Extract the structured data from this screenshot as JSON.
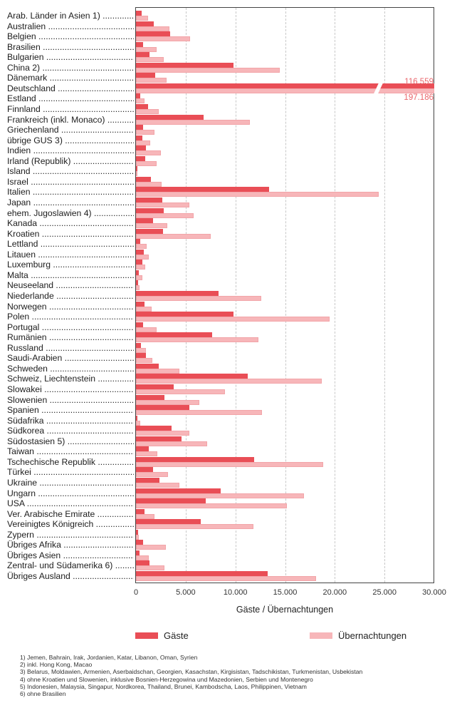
{
  "chart_data": {
    "type": "bar",
    "orientation": "horizontal",
    "xlabel": "Gäste / Übernachtungen",
    "ylabel": "",
    "xlim": [
      0,
      30000
    ],
    "x_ticks": [
      "0",
      "5.000",
      "10.000",
      "15.000",
      "20.000",
      "25.000",
      "30.000"
    ],
    "grid": true,
    "legend_position": "bottom",
    "colors": {
      "gaeste": "#e94e56",
      "uebernachtungen": "#f7b6b9",
      "break_label": "#e9656b"
    },
    "categories": [
      "Arab. Länder in Asien 1)",
      "Australien",
      "Belgien",
      "Brasilien",
      "Bulgarien",
      "China 2)",
      "Dänemark",
      "Deutschland",
      "Estland",
      "Finnland",
      "Frankreich (inkl. Monaco)",
      "Griechenland",
      "übrige GUS 3)",
      "Indien",
      "Irland (Republik)",
      "Island",
      "Israel",
      "Italien",
      "Japan",
      "ehem. Jugoslawien 4)",
      "Kanada",
      "Kroatien",
      "Lettland",
      "Litauen",
      "Luxemburg",
      "Malta",
      "Neuseeland",
      "Niederlande",
      "Norwegen",
      "Polen",
      "Portugal",
      "Rumänien",
      "Russland",
      "Saudi-Arabien",
      "Schweden",
      "Schweiz, Liechtenstein",
      "Slowakei",
      "Slowenien",
      "Spanien",
      "Südafrika",
      "Südkorea",
      "Südostasien 5)",
      "Taiwan",
      "Tschechische Republik",
      "Türkei",
      "Ukraine",
      "Ungarn",
      "USA",
      "Ver. Arabische Emirate",
      "Vereinigtes Königreich",
      "Zypern",
      "Übriges Afrika",
      "Übriges Asien",
      "Zentral- und Südamerika 6)",
      "Übriges Ausland"
    ],
    "series": [
      {
        "name": "Gäste",
        "values": [
          570,
          1790,
          3440,
          740,
          1340,
          9790,
          1960,
          116559,
          430,
          1220,
          6780,
          740,
          640,
          980,
          930,
          120,
          1530,
          13390,
          2670,
          2790,
          1700,
          2700,
          430,
          790,
          620,
          260,
          190,
          8310,
          860,
          9830,
          740,
          7640,
          480,
          1020,
          2270,
          11220,
          3820,
          2890,
          5370,
          140,
          3600,
          4560,
          1310,
          11860,
          1740,
          2360,
          8520,
          7040,
          860,
          6540,
          190,
          740,
          380,
          1340,
          13250
        ]
      },
      {
        "name": "Übernachtungen",
        "values": [
          1220,
          3340,
          5440,
          2050,
          2790,
          14460,
          3080,
          197186,
          840,
          2270,
          11430,
          1880,
          1410,
          2480,
          2080,
          170,
          2580,
          24410,
          5350,
          5780,
          3150,
          7500,
          1100,
          1270,
          930,
          620,
          360,
          12600,
          1550,
          19450,
          2050,
          12290,
          1020,
          1650,
          4350,
          18660,
          8930,
          6390,
          12670,
          410,
          5390,
          7140,
          2170,
          18850,
          3240,
          4350,
          16880,
          15160,
          1840,
          11790,
          310,
          2990,
          1270,
          2890,
          18140
        ]
      }
    ],
    "annotations": [
      {
        "category": "Deutschland",
        "series": "Gäste",
        "text": "116.559",
        "note": "axis break"
      },
      {
        "category": "Deutschland",
        "series": "Übernachtungen",
        "text": "197.186",
        "note": "axis break"
      }
    ]
  },
  "labels": {
    "xlabel": "Gäste / Übernachtungen",
    "legend_gaeste": "Gäste",
    "legend_uebernachtungen": "Übernachtungen",
    "deutschland_gaeste": "116.559",
    "deutschland_uebernachtungen": "197.186"
  },
  "footnotes": [
    "1) Jemen, Bahrain, Irak, Jordanien, Katar, Libanon, Oman, Syrien",
    "2) inkl. Hong Kong, Macao",
    "3) Belarus, Moldawien, Armenien, Aserbaidschan, Georgien, Kasachstan, Kirgisistan, Tadschikistan, Turkmenistan, Usbekistan",
    "4) ohne Kroatien und Slowenien, inklusive Bosnien-Herzegowina und Mazedonien, Serbien und Montenegro",
    "5) Indonesien, Malaysia, Singapur, Nordkorea, Thailand, Brunei, Kambodscha, Laos, Philippinen, Vietnam",
    "6) ohne Brasilien"
  ]
}
